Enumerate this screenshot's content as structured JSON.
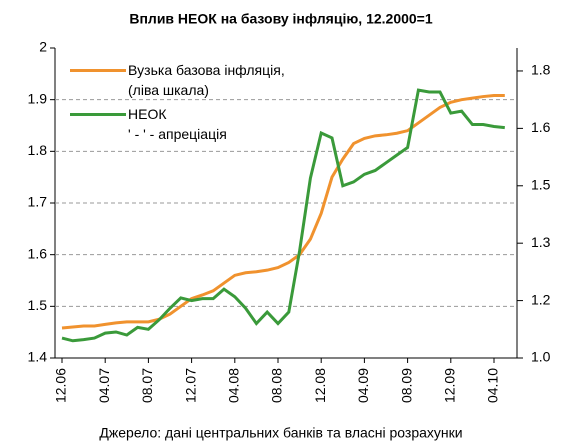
{
  "chart_data": {
    "type": "line",
    "title": "Вплив НЕОК на базову інфляцію, 12.2000=1",
    "source": "Джерело: дані центральних банків та власні розрахунки",
    "categories": [
      "12.06",
      null,
      null,
      null,
      "04.07",
      null,
      null,
      null,
      "08.07",
      null,
      null,
      null,
      "12.07",
      null,
      null,
      null,
      "04.08",
      null,
      null,
      null,
      "08.08",
      null,
      null,
      null,
      "12.08",
      null,
      null,
      null,
      "04.09",
      null,
      null,
      null,
      "08.09",
      null,
      null,
      null,
      "12.09",
      null,
      null,
      null,
      "04.10",
      null
    ],
    "series": [
      {
        "name": "Вузька базова інфляція,\n(ліва шкала)",
        "color": "#f0922e",
        "axis": "y",
        "values": [
          1.458,
          1.46,
          1.462,
          1.462,
          1.465,
          1.468,
          1.47,
          1.47,
          1.47,
          1.475,
          1.485,
          1.5,
          1.515,
          1.522,
          1.53,
          1.545,
          1.56,
          1.565,
          1.567,
          1.57,
          1.575,
          1.585,
          1.6,
          1.63,
          1.68,
          1.75,
          1.785,
          1.815,
          1.825,
          1.83,
          1.832,
          1.835,
          1.84,
          1.855,
          1.87,
          1.885,
          1.895,
          1.9,
          1.903,
          1.906,
          1.908,
          1.908
        ]
      },
      {
        "name": "НЕОК\n' - ' - апреціація",
        "color": "#3a9a3a",
        "axis": "y2",
        "values": [
          1.052,
          1.045,
          1.048,
          1.052,
          1.065,
          1.068,
          1.06,
          1.08,
          1.075,
          1.1,
          1.13,
          1.157,
          1.15,
          1.155,
          1.155,
          1.18,
          1.16,
          1.13,
          1.09,
          1.12,
          1.09,
          1.12,
          1.28,
          1.47,
          1.588,
          1.575,
          1.45,
          1.46,
          1.48,
          1.49,
          1.51,
          1.53,
          1.55,
          1.7,
          1.695,
          1.695,
          1.64,
          1.645,
          1.61,
          1.61,
          1.605,
          1.602
        ]
      }
    ],
    "ylim": [
      1.4,
      2.0
    ],
    "yticks": [
      1.4,
      1.5,
      1.6,
      1.7,
      1.8,
      1.9,
      2.0
    ],
    "y2lim": [
      1.0,
      1.81
    ],
    "y2ticks": [
      {
        "value": 1.0,
        "label": "1.0"
      },
      {
        "value": 1.15,
        "label": "1.2"
      },
      {
        "value": 1.3,
        "label": "1.3"
      },
      {
        "value": 1.45,
        "label": "1.5"
      },
      {
        "value": 1.6,
        "label": "1.6"
      },
      {
        "value": 1.75,
        "label": "1.8"
      }
    ],
    "grid": true,
    "legend": "upper left"
  }
}
